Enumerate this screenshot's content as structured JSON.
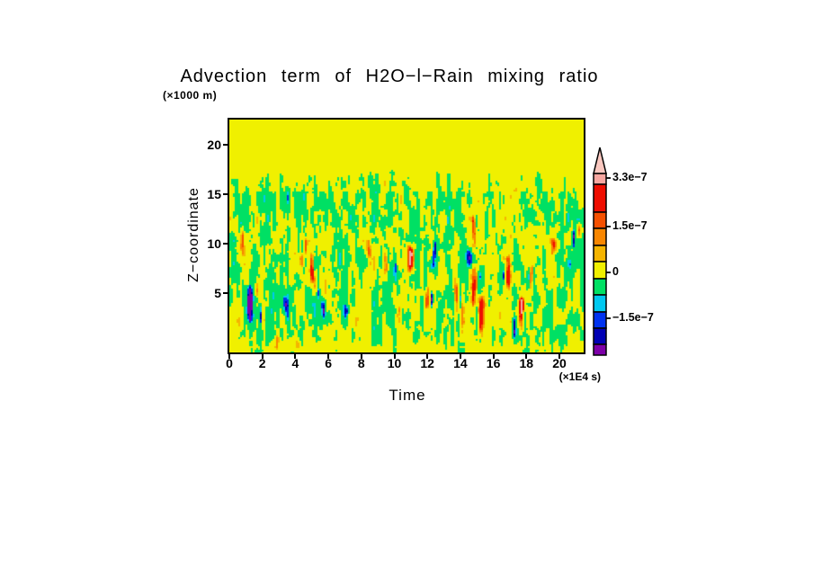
{
  "title": "Advection term of H2O−l−Rain mixing ratio",
  "y_axis": {
    "unit": "(×1000 m)",
    "label": "Z−coordinate",
    "ticks": [
      "20",
      "15",
      "10",
      "5"
    ]
  },
  "x_axis": {
    "label": "Time",
    "unit": "(×1E4 s)",
    "ticks": [
      "0",
      "2",
      "4",
      "6",
      "8",
      "10",
      "12",
      "14",
      "16",
      "18",
      "20"
    ]
  },
  "colorbar": {
    "tick_labels": [
      "3.3e−7",
      "1.5e−7",
      "0",
      "−1.5e−7"
    ],
    "arrow_color": "#fac8c0",
    "segments": [
      {
        "color": "#f7a6a0",
        "h": 12
      },
      {
        "color": "#ee0d00",
        "h": 31
      },
      {
        "color": "#f55000",
        "h": 18
      },
      {
        "color": "#f88600",
        "h": 19
      },
      {
        "color": "#f5b400",
        "h": 18
      },
      {
        "color": "#f0f000",
        "h": 19
      },
      {
        "color": "#00e064",
        "h": 18
      },
      {
        "color": "#00c8f0",
        "h": 19
      },
      {
        "color": "#0032f0",
        "h": 18
      },
      {
        "color": "#0000b4",
        "h": 18
      },
      {
        "color": "#7d00a8",
        "h": 12
      }
    ]
  },
  "chart_data": {
    "type": "heatmap",
    "title": "Advection term of H2O−l−Rain mixing ratio",
    "xlabel": "Time (×1E4 s)",
    "ylabel": "Z−coordinate (×1000 m)",
    "x_ticks": [
      0,
      2,
      4,
      6,
      8,
      10,
      12,
      14,
      16,
      18,
      20
    ],
    "y_ticks": [
      5,
      10,
      15,
      20
    ],
    "x_range": [
      0,
      21.5
    ],
    "y_range": [
      -1.1,
      22.6
    ],
    "grid": false,
    "legend_position": "right-colorbar",
    "colorbar_labeled_levels": [
      "3.3e-7",
      "1.5e-7",
      "0",
      "-1.5e-7"
    ],
    "band_edges_x1e7": [
      -2.0,
      -1.5,
      -1.0,
      -0.5,
      0.0,
      0.5,
      1.0,
      1.5,
      2.1,
      3.3
    ],
    "band_colors_low_to_high": [
      "#7d00a8",
      "#0000b4",
      "#0032f0",
      "#00c8f0",
      "#00e064",
      "#f0f000",
      "#f5b400",
      "#f88600",
      "#f55000",
      "#ee0d00",
      "#f7a6a0"
    ],
    "field_summary": {
      "background": "near-zero (yellow) everywhere above z≈16.5 km and in a thin layer at the bottom",
      "active_layer_z_km": [
        0,
        16.5
      ],
      "speckled_top_edge_z_km": [
        14,
        16.5
      ],
      "dominant_pattern": "vertically striated weak-negative (green) filaments on near-zero (yellow) background",
      "positive_plumes": "narrow orange/red vertical streaks mainly between z=3 and z=13 km, scattered in time",
      "strong_negative_spots": "cyan/blue/navy slivers beside red plumes; deep blue cluster near t≈1×1E4 s, z≈2–5 km"
    },
    "field": {
      "seed": 1337,
      "nx": 197,
      "ny": 130,
      "cell": 2,
      "octaves": [
        {
          "sx": 1.9,
          "sy": 11,
          "a": 0.95
        },
        {
          "sx": 4.5,
          "sy": 26,
          "a": 0.6
        },
        {
          "sx": 1.2,
          "sy": 3.2,
          "a": 0.5
        }
      ],
      "envelope": {
        "top": 0.185,
        "ramp": 0.31,
        "fade": 0.9,
        "bot": 0.97,
        "low": 0.05,
        "bot_amp": 0.4,
        "bias": -0.3
      },
      "pos_plumes": 26,
      "neg_clusters": 8,
      "features": [
        {
          "fx": 0.055,
          "ft": 0.7,
          "flen": 0.17,
          "w": 2.0,
          "amp": -3.1
        },
        {
          "fx": 0.075,
          "ft": 0.66,
          "flen": 0.1,
          "w": 0.8,
          "amp": 2.0
        },
        {
          "fx": 0.13,
          "ft": 0.92,
          "flen": 0.07,
          "w": 1.4,
          "amp": 1.6
        },
        {
          "fx": 0.19,
          "ft": 0.93,
          "flen": 0.06,
          "w": 1.1,
          "amp": 1.5
        },
        {
          "fx": 0.44,
          "ft": 0.55,
          "flen": 0.14,
          "w": 0.9,
          "amp": 2.6
        },
        {
          "fx": 0.465,
          "ft": 0.6,
          "flen": 0.1,
          "w": 0.8,
          "amp": -2.4
        },
        {
          "fx": 0.97,
          "ft": 0.45,
          "flen": 0.1,
          "w": 0.9,
          "amp": -2.2
        }
      ],
      "thresholds": [
        {
          "v": 3.2,
          "color": "#f7a6a0"
        },
        {
          "v": 2.2,
          "color": "#ee0d00"
        },
        {
          "v": 1.8,
          "color": "#f55000"
        },
        {
          "v": 1.35,
          "color": "#f88600"
        },
        {
          "v": 0.95,
          "color": "#f5b400"
        },
        {
          "v": -0.35,
          "color": "#f0f000"
        },
        {
          "v": -1.55,
          "color": "#00e064"
        },
        {
          "v": -1.9,
          "color": "#00c8f0"
        },
        {
          "v": -2.3,
          "color": "#0032f0"
        },
        {
          "v": -2.7,
          "color": "#0000b4"
        },
        {
          "v": -99,
          "color": "#7d00a8"
        }
      ]
    }
  }
}
